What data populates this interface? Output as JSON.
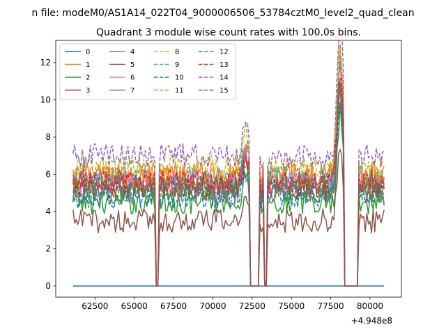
{
  "figure_title": "n file: modeM0/AS1A14_022T04_9000006506_53784cztM0_level2_quad_clean",
  "chart_data": {
    "type": "line",
    "title": "Quadrant 3 module wise count rates with 100.0s bins.",
    "xlabel": "",
    "ylabel": "",
    "x_offset_label": "+4.948e8",
    "xlim": [
      60000,
      82000
    ],
    "ylim": [
      -0.6,
      13.2
    ],
    "xticks": [
      62500,
      65000,
      67500,
      70000,
      72500,
      75000,
      77500,
      80000
    ],
    "yticks": [
      0,
      2,
      4,
      6,
      8,
      10,
      12
    ],
    "x_start": 61100,
    "x_end": 80900,
    "bin_width": 100,
    "gaps": [
      {
        "start": 66400,
        "end": 66550
      },
      {
        "start": 72400,
        "end": 72900
      },
      {
        "start": 73300,
        "end": 73400
      },
      {
        "start": 78400,
        "end": 79250
      }
    ],
    "flares": [
      {
        "center": 78100,
        "width": 250,
        "amplitude": 6.0
      },
      {
        "center": 72100,
        "width": 300,
        "amplitude": 1.5
      }
    ],
    "legend": {
      "location": "upper-left",
      "columns": 4
    },
    "series": [
      {
        "name": "0",
        "color": "#1f77b4",
        "dash": "solid",
        "level": 0.0
      },
      {
        "name": "1",
        "color": "#ff7f0e",
        "dash": "solid",
        "level": 6.0
      },
      {
        "name": "2",
        "color": "#2ca02c",
        "dash": "solid",
        "level": 4.5
      },
      {
        "name": "3",
        "color": "#d62728",
        "dash": "solid",
        "level": 5.3
      },
      {
        "name": "4",
        "color": "#9467bd",
        "dash": "solid",
        "level": 5.5
      },
      {
        "name": "5",
        "color": "#8c564b",
        "dash": "solid",
        "level": 3.5
      },
      {
        "name": "6",
        "color": "#e377c2",
        "dash": "solid",
        "level": 5.6
      },
      {
        "name": "7",
        "color": "#7f7f7f",
        "dash": "solid",
        "level": 5.0
      },
      {
        "name": "8",
        "color": "#bcbd22",
        "dash": "dashed",
        "level": 6.4
      },
      {
        "name": "9",
        "color": "#17becf",
        "dash": "dashed",
        "level": 5.8
      },
      {
        "name": "10",
        "color": "#1f77b4",
        "dash": "dashed",
        "level": 4.8
      },
      {
        "name": "11",
        "color": "#ff7f0e",
        "dash": "dashed",
        "level": 5.9
      },
      {
        "name": "12",
        "color": "#2ca02c",
        "dash": "dashed",
        "level": 5.2
      },
      {
        "name": "13",
        "color": "#d62728",
        "dash": "dashed",
        "level": 5.6
      },
      {
        "name": "14",
        "color": "#9467bd",
        "dash": "dashed",
        "level": 7.0
      },
      {
        "name": "15",
        "color": "#8c564b",
        "dash": "dashed",
        "level": 5.4
      }
    ]
  }
}
